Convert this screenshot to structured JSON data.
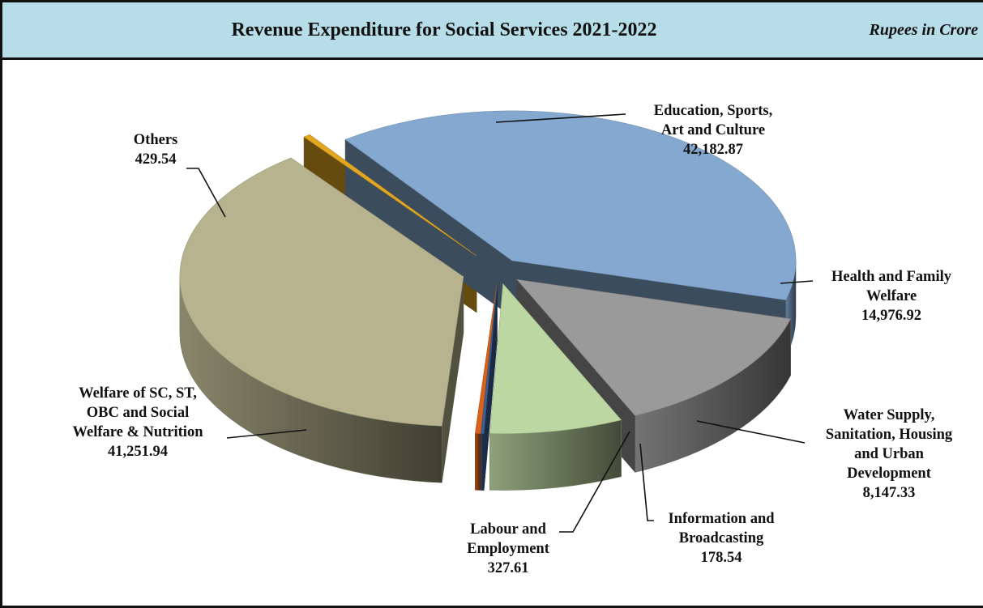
{
  "chart_data": {
    "type": "pie",
    "title": "Revenue Expenditure for Social Services 2021-2022",
    "unit_note": "Rupees in Crore",
    "slices": [
      {
        "name_lines": [
          "Education, Sports,",
          "Art and  Culture"
        ],
        "label": "Education, Sports, Art and Culture",
        "value": 42182.87,
        "value_text": "42,182.87",
        "color": "#84a8cf"
      },
      {
        "name_lines": [
          "Health and Family",
          "Welfare"
        ],
        "label": "Health and Family Welfare",
        "value": 14976.92,
        "value_text": "14,976.92",
        "color": "#9a9a9a"
      },
      {
        "name_lines": [
          "Water Supply,",
          "Sanitation, Housing",
          "and Urban",
          "Development"
        ],
        "label": "Water Supply, Sanitation, Housing and Urban Development",
        "value": 8147.33,
        "value_text": "8,147.33",
        "color": "#bdd7a3"
      },
      {
        "name_lines": [
          "Information and",
          "Broadcasting"
        ],
        "label": "Information and Broadcasting",
        "value": 178.54,
        "value_text": "178.54",
        "color": "#3d5f93"
      },
      {
        "name_lines": [
          "Labour and",
          "Employment"
        ],
        "label": "Labour and Employment",
        "value": 327.61,
        "value_text": "327.61",
        "color": "#d9621a"
      },
      {
        "name_lines": [
          "Welfare of SC, ST,",
          "OBC and Social",
          "Welfare & Nutrition"
        ],
        "label": "Welfare of SC, ST, OBC and Social Welfare & Nutrition",
        "value": 41251.94,
        "value_text": "41,251.94",
        "color": "#b6b38e"
      },
      {
        "name_lines": [
          "Others"
        ],
        "label": "Others",
        "value": 429.54,
        "value_text": "429.54",
        "color": "#e3a621"
      }
    ]
  }
}
